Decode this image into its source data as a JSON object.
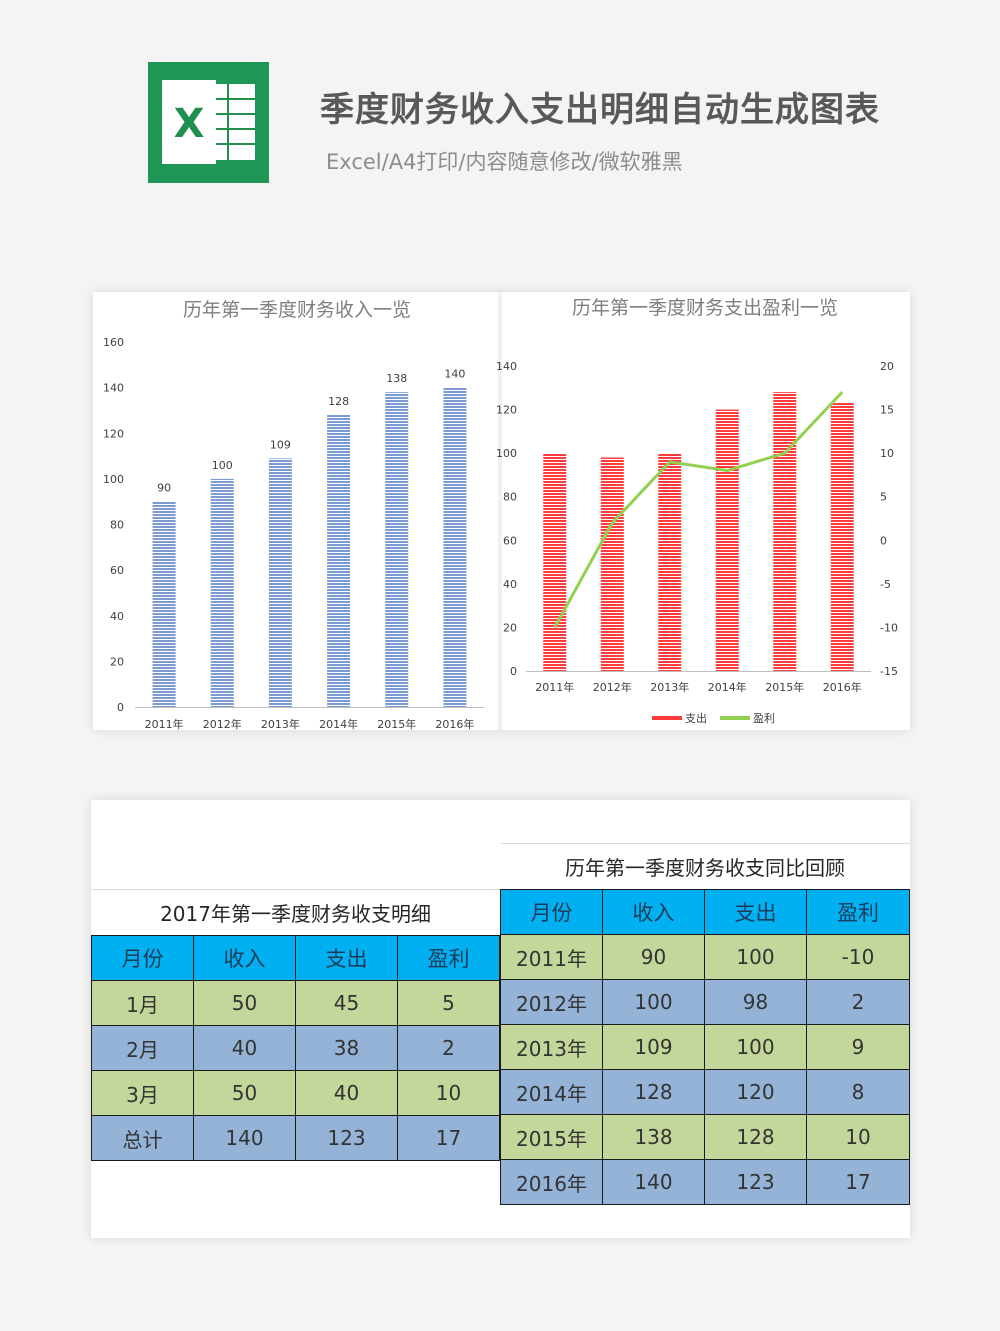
{
  "header": {
    "title": "季度财务收入支出明细自动生成图表",
    "subtitle": "Excel/A4打印/内容随意修改/微软雅黑",
    "logo_letter": "X"
  },
  "chart_data": [
    {
      "type": "bar",
      "title": "历年第一季度财务收入一览",
      "categories": [
        "2011年",
        "2012年",
        "2013年",
        "2014年",
        "2015年",
        "2016年"
      ],
      "values": [
        90,
        100,
        109,
        128,
        138,
        140
      ],
      "data_labels": [
        "90",
        "100",
        "109",
        "128",
        "138",
        "140"
      ],
      "ylim": [
        0,
        160
      ],
      "yticks": [
        "0",
        "20",
        "40",
        "60",
        "80",
        "100",
        "120",
        "140",
        "160"
      ],
      "color": "#7b9bd2"
    },
    {
      "type": "bar+line",
      "title": "历年第一季度财务支出盈利一览",
      "categories": [
        "2011年",
        "2012年",
        "2013年",
        "2014年",
        "2015年",
        "2016年"
      ],
      "series": [
        {
          "name": "支出",
          "type": "bar",
          "values": [
            100,
            98,
            100,
            120,
            128,
            123
          ],
          "axis": "left",
          "color": "#ff3b3b"
        },
        {
          "name": "盈利",
          "type": "line",
          "values": [
            -10,
            2,
            9,
            8,
            10,
            17
          ],
          "axis": "right",
          "color": "#92d050"
        }
      ],
      "ylim_left": [
        0,
        140
      ],
      "yticks_left": [
        "0",
        "20",
        "40",
        "60",
        "80",
        "100",
        "120",
        "140"
      ],
      "ylim_right": [
        -15,
        20
      ],
      "yticks_right": [
        "-15",
        "-10",
        "-5",
        "0",
        "5",
        "10",
        "15",
        "20"
      ],
      "legend_position": "bottom"
    }
  ],
  "table_2017": {
    "caption": "2017年第一季度财务收支明细",
    "headers": [
      "月份",
      "收入",
      "支出",
      "盈利"
    ],
    "rows": [
      [
        "1月",
        "50",
        "45",
        "5"
      ],
      [
        "2月",
        "40",
        "38",
        "2"
      ],
      [
        "3月",
        "50",
        "40",
        "10"
      ],
      [
        "总计",
        "140",
        "123",
        "17"
      ]
    ]
  },
  "table_history": {
    "caption": "历年第一季度财务收支同比回顾",
    "headers": [
      "月份",
      "收入",
      "支出",
      "盈利"
    ],
    "rows": [
      [
        "2011年",
        "90",
        "100",
        "-10"
      ],
      [
        "2012年",
        "100",
        "98",
        "2"
      ],
      [
        "2013年",
        "109",
        "100",
        "9"
      ],
      [
        "2014年",
        "128",
        "120",
        "8"
      ],
      [
        "2015年",
        "138",
        "128",
        "10"
      ],
      [
        "2016年",
        "140",
        "123",
        "17"
      ]
    ]
  }
}
